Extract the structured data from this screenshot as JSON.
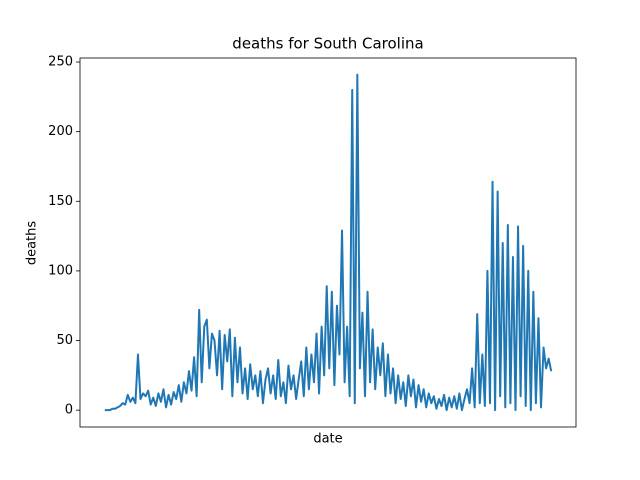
{
  "chart_data": {
    "type": "line",
    "title": "deaths for South Carolina",
    "x_label": "date",
    "y_label": "deaths",
    "color": "#1f77b4",
    "values": [
      0,
      0,
      0,
      1,
      1,
      2,
      3,
      5,
      4,
      11,
      6,
      9,
      5,
      40,
      8,
      12,
      10,
      14,
      4,
      9,
      3,
      12,
      6,
      15,
      2,
      11,
      4,
      13,
      8,
      18,
      6,
      20,
      12,
      28,
      14,
      38,
      10,
      72,
      20,
      60,
      65,
      30,
      55,
      50,
      25,
      57,
      15,
      54,
      35,
      58,
      10,
      52,
      20,
      45,
      12,
      30,
      8,
      33,
      15,
      25,
      10,
      28,
      5,
      22,
      30,
      12,
      25,
      8,
      36,
      10,
      20,
      5,
      32,
      15,
      25,
      8,
      22,
      35,
      10,
      45,
      15,
      40,
      20,
      55,
      12,
      60,
      25,
      89,
      30,
      85,
      18,
      75,
      40,
      129,
      20,
      60,
      10,
      230,
      5,
      241,
      30,
      70,
      10,
      85,
      20,
      58,
      15,
      45,
      25,
      48,
      10,
      40,
      12,
      30,
      5,
      25,
      8,
      20,
      3,
      25,
      10,
      22,
      2,
      18,
      6,
      15,
      2,
      12,
      5,
      10,
      1,
      8,
      3,
      11,
      0,
      9,
      2,
      10,
      1,
      12,
      0,
      8,
      15,
      5,
      30,
      2,
      69,
      5,
      40,
      3,
      100,
      5,
      164,
      0,
      157,
      10,
      120,
      2,
      133,
      5,
      110,
      0,
      132,
      10,
      118,
      3,
      100,
      0,
      85,
      5,
      66,
      2,
      45,
      30,
      37,
      28
    ],
    "ylim": [
      -12.1,
      252.9
    ],
    "yticks": [
      0,
      50,
      100,
      150,
      200,
      250
    ],
    "grid": false
  }
}
